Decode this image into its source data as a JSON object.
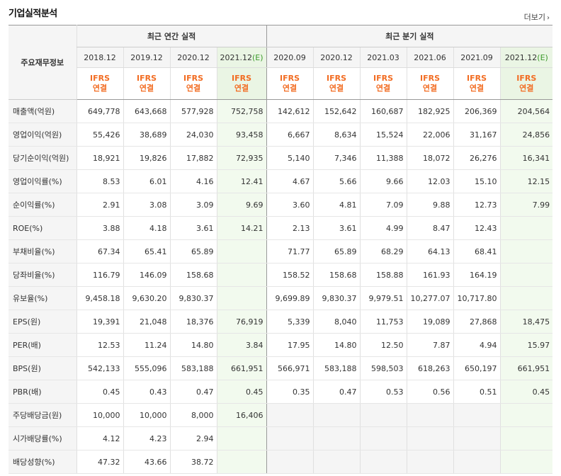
{
  "title": "기업실적분석",
  "more": {
    "label": "더보기",
    "icon": "chevron-right-icon"
  },
  "header": {
    "corner": "주요재무정보",
    "annual_group": "최근 연간 실적",
    "quarter_group": "최근 분기 실적",
    "periods": [
      "2018.12",
      "2019.12",
      "2020.12",
      "2021.12(E)",
      "2020.09",
      "2020.12",
      "2021.03",
      "2021.06",
      "2021.09",
      "2021.12(E)"
    ],
    "basis_top": "IFRS",
    "basis_bottom": "연결"
  },
  "colors": {
    "accent": "#f26c22",
    "estimate_bg": "#f2faee"
  },
  "rows": [
    {
      "label": "매출액(억원)",
      "values": [
        "649,778",
        "643,668",
        "577,928",
        "752,758",
        "142,612",
        "152,642",
        "160,687",
        "182,925",
        "206,369",
        "204,564"
      ]
    },
    {
      "label": "영업이익(억원)",
      "values": [
        "55,426",
        "38,689",
        "24,030",
        "93,458",
        "6,667",
        "8,634",
        "15,524",
        "22,006",
        "31,167",
        "24,856"
      ]
    },
    {
      "label": "당기순이익(억원)",
      "values": [
        "18,921",
        "19,826",
        "17,882",
        "72,935",
        "5,140",
        "7,346",
        "11,388",
        "18,072",
        "26,276",
        "16,341"
      ]
    },
    {
      "label": "영업이익률(%)",
      "values": [
        "8.53",
        "6.01",
        "4.16",
        "12.41",
        "4.67",
        "5.66",
        "9.66",
        "12.03",
        "15.10",
        "12.15"
      ]
    },
    {
      "label": "순이익률(%)",
      "values": [
        "2.91",
        "3.08",
        "3.09",
        "9.69",
        "3.60",
        "4.81",
        "7.09",
        "9.88",
        "12.73",
        "7.99"
      ]
    },
    {
      "label": "ROE(%)",
      "values": [
        "3.88",
        "4.18",
        "3.61",
        "14.21",
        "2.13",
        "3.61",
        "4.99",
        "8.47",
        "12.43",
        ""
      ]
    },
    {
      "label": "부채비율(%)",
      "values": [
        "67.34",
        "65.41",
        "65.89",
        "",
        "71.77",
        "65.89",
        "68.29",
        "64.13",
        "68.41",
        ""
      ]
    },
    {
      "label": "당좌비율(%)",
      "values": [
        "116.79",
        "146.09",
        "158.68",
        "",
        "158.52",
        "158.68",
        "158.88",
        "161.93",
        "164.19",
        ""
      ]
    },
    {
      "label": "유보율(%)",
      "values": [
        "9,458.18",
        "9,630.20",
        "9,830.37",
        "",
        "9,699.89",
        "9,830.37",
        "9,979.51",
        "10,277.07",
        "10,717.80",
        ""
      ]
    },
    {
      "label": "EPS(원)",
      "values": [
        "19,391",
        "21,048",
        "18,376",
        "76,919",
        "5,339",
        "8,040",
        "11,753",
        "19,089",
        "27,868",
        "18,475"
      ]
    },
    {
      "label": "PER(배)",
      "values": [
        "12.53",
        "11.24",
        "14.80",
        "3.84",
        "17.95",
        "14.80",
        "12.50",
        "7.87",
        "4.94",
        "15.97"
      ]
    },
    {
      "label": "BPS(원)",
      "values": [
        "542,133",
        "555,096",
        "583,188",
        "661,951",
        "566,971",
        "583,188",
        "598,503",
        "618,263",
        "650,197",
        "661,951"
      ]
    },
    {
      "label": "PBR(배)",
      "values": [
        "0.45",
        "0.43",
        "0.47",
        "0.45",
        "0.35",
        "0.47",
        "0.53",
        "0.56",
        "0.51",
        "0.45"
      ]
    },
    {
      "label": "주당배당금(원)",
      "values": [
        "10,000",
        "10,000",
        "8,000",
        "16,406",
        "",
        "",
        "",
        "",
        "",
        ""
      ]
    },
    {
      "label": "시가배당률(%)",
      "values": [
        "4.12",
        "4.23",
        "2.94",
        "",
        "",
        "",
        "",
        "",
        "",
        ""
      ]
    },
    {
      "label": "배당성향(%)",
      "values": [
        "47.32",
        "43.66",
        "38.72",
        "",
        "",
        "",
        "",
        "",
        "",
        ""
      ]
    }
  ]
}
